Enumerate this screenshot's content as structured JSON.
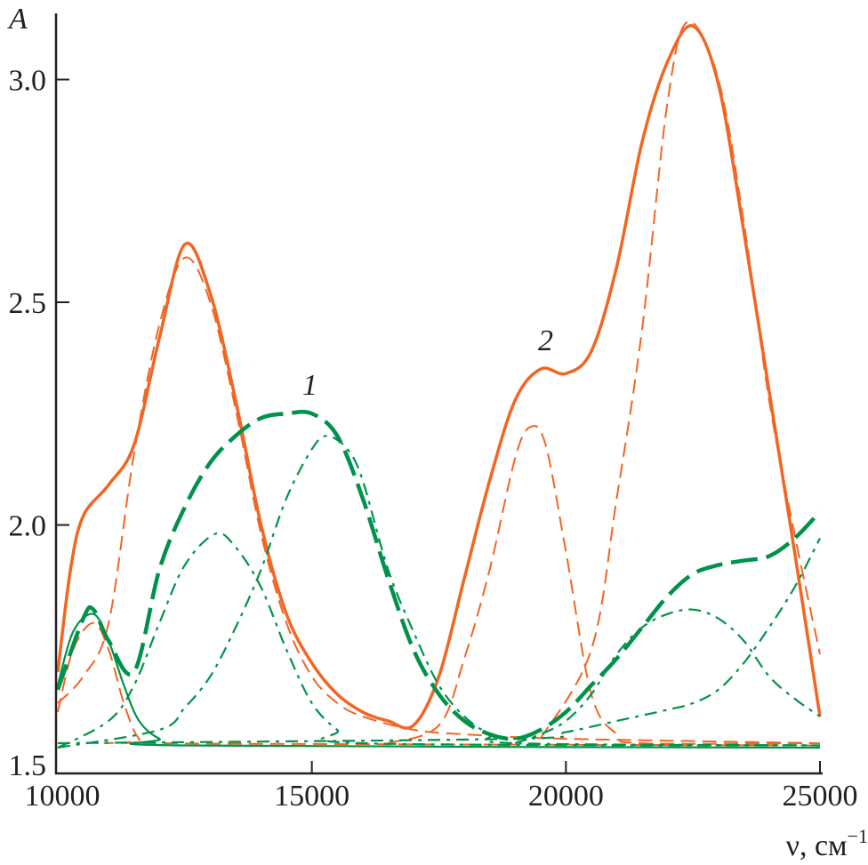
{
  "chart_data": {
    "type": "line",
    "ylabel": "A",
    "xlabel": "ν, см⁻¹",
    "xlim": [
      10000,
      25000
    ],
    "ylim": [
      1.44,
      3.15
    ],
    "x_ticks": [
      "10000",
      "15000",
      "20000",
      "25000"
    ],
    "y_ticks": [
      "1.5",
      "2.0",
      "2.5",
      "3.0"
    ],
    "grid": false,
    "annotations": [
      {
        "text": "1",
        "x": 14950,
        "y": 2.3
      },
      {
        "text": "2",
        "x": 19650,
        "y": 2.4
      }
    ],
    "colors": {
      "orange": "#F26522",
      "green": "#00924A",
      "axis": "#231f20"
    },
    "series": [
      {
        "color": "orange",
        "style": "solid-thick",
        "points": [
          [
            10000,
            1.67
          ],
          [
            10250,
            1.9
          ],
          [
            10500,
            2.02
          ],
          [
            11000,
            2.09
          ],
          [
            11500,
            2.18
          ],
          [
            12000,
            2.42
          ],
          [
            12500,
            2.63
          ],
          [
            13000,
            2.52
          ],
          [
            13500,
            2.28
          ],
          [
            14000,
            2.0
          ],
          [
            14500,
            1.8
          ],
          [
            15000,
            1.69
          ],
          [
            15500,
            1.62
          ],
          [
            16000,
            1.58
          ],
          [
            16500,
            1.56
          ],
          [
            17000,
            1.55
          ],
          [
            17500,
            1.66
          ],
          [
            18000,
            1.88
          ],
          [
            18500,
            2.1
          ],
          [
            19000,
            2.28
          ],
          [
            19500,
            2.35
          ],
          [
            20000,
            2.34
          ],
          [
            20500,
            2.39
          ],
          [
            21000,
            2.58
          ],
          [
            21500,
            2.86
          ],
          [
            22000,
            3.04
          ],
          [
            22500,
            3.12
          ],
          [
            23000,
            2.99
          ],
          [
            23500,
            2.66
          ],
          [
            24000,
            2.3
          ],
          [
            24500,
            1.94
          ],
          [
            25000,
            1.57
          ]
        ]
      },
      {
        "color": "orange",
        "style": "dashed",
        "points": [
          [
            10000,
            1.58
          ],
          [
            10300,
            1.72
          ],
          [
            10700,
            1.78
          ],
          [
            11000,
            1.72
          ],
          [
            11300,
            1.6
          ],
          [
            11600,
            1.52
          ],
          [
            12000,
            1.51
          ],
          [
            25000,
            1.505
          ]
        ]
      },
      {
        "color": "orange",
        "style": "dashed",
        "points": [
          [
            10000,
            1.6
          ],
          [
            10500,
            1.66
          ],
          [
            11000,
            1.78
          ],
          [
            11500,
            2.16
          ],
          [
            12000,
            2.45
          ],
          [
            12500,
            2.6
          ],
          [
            13000,
            2.5
          ],
          [
            13500,
            2.26
          ],
          [
            14000,
            1.98
          ],
          [
            14500,
            1.78
          ],
          [
            15000,
            1.66
          ],
          [
            15500,
            1.6
          ],
          [
            16000,
            1.57
          ],
          [
            17000,
            1.54
          ],
          [
            18000,
            1.53
          ],
          [
            20000,
            1.52
          ],
          [
            25000,
            1.51
          ]
        ]
      },
      {
        "color": "orange",
        "style": "dashed",
        "points": [
          [
            16500,
            1.51
          ],
          [
            17500,
            1.55
          ],
          [
            18000,
            1.7
          ],
          [
            18500,
            1.9
          ],
          [
            19000,
            2.15
          ],
          [
            19300,
            2.22
          ],
          [
            19600,
            2.18
          ],
          [
            20000,
            1.94
          ],
          [
            20500,
            1.62
          ],
          [
            21000,
            1.53
          ],
          [
            21500,
            1.51
          ],
          [
            25000,
            1.51
          ]
        ]
      },
      {
        "color": "orange",
        "style": "dashed",
        "points": [
          [
            19500,
            1.52
          ],
          [
            20500,
            1.72
          ],
          [
            21000,
            2.06
          ],
          [
            21500,
            2.44
          ],
          [
            22000,
            2.95
          ],
          [
            22400,
            3.13
          ],
          [
            23000,
            3.0
          ],
          [
            23500,
            2.68
          ],
          [
            24000,
            2.28
          ],
          [
            24500,
            1.98
          ],
          [
            25000,
            1.71
          ]
        ]
      },
      {
        "color": "green",
        "style": "long-dashed-thick",
        "points": [
          [
            10000,
            1.63
          ],
          [
            10500,
            1.79
          ],
          [
            10700,
            1.81
          ],
          [
            11000,
            1.74
          ],
          [
            11500,
            1.67
          ],
          [
            12000,
            1.9
          ],
          [
            12500,
            2.04
          ],
          [
            13000,
            2.14
          ],
          [
            13500,
            2.2
          ],
          [
            14000,
            2.24
          ],
          [
            14500,
            2.25
          ],
          [
            15000,
            2.25
          ],
          [
            15500,
            2.2
          ],
          [
            16000,
            2.06
          ],
          [
            16500,
            1.88
          ],
          [
            17000,
            1.72
          ],
          [
            17500,
            1.62
          ],
          [
            18000,
            1.56
          ],
          [
            18500,
            1.53
          ],
          [
            19000,
            1.52
          ],
          [
            19500,
            1.54
          ],
          [
            20000,
            1.58
          ],
          [
            20500,
            1.64
          ],
          [
            21000,
            1.7
          ],
          [
            21500,
            1.77
          ],
          [
            22000,
            1.84
          ],
          [
            22500,
            1.89
          ],
          [
            23000,
            1.91
          ],
          [
            23500,
            1.92
          ],
          [
            24000,
            1.93
          ],
          [
            24500,
            1.97
          ],
          [
            25000,
            2.03
          ]
        ]
      },
      {
        "color": "green",
        "style": "solid-thin",
        "points": [
          [
            10000,
            1.64
          ],
          [
            10300,
            1.76
          ],
          [
            10700,
            1.8
          ],
          [
            11000,
            1.74
          ],
          [
            11300,
            1.64
          ],
          [
            11600,
            1.56
          ],
          [
            12000,
            1.52
          ],
          [
            12500,
            1.505
          ],
          [
            25000,
            1.5
          ]
        ]
      },
      {
        "color": "green",
        "style": "dash-dot",
        "points": [
          [
            10000,
            1.5
          ],
          [
            11000,
            1.56
          ],
          [
            11500,
            1.64
          ],
          [
            12000,
            1.78
          ],
          [
            12500,
            1.91
          ],
          [
            13100,
            1.98
          ],
          [
            13500,
            1.95
          ],
          [
            14000,
            1.86
          ],
          [
            14500,
            1.72
          ],
          [
            15000,
            1.6
          ],
          [
            15500,
            1.54
          ],
          [
            16000,
            1.51
          ],
          [
            25000,
            1.505
          ]
        ]
      },
      {
        "color": "green",
        "style": "dash-dot",
        "points": [
          [
            10000,
            1.5
          ],
          [
            12000,
            1.54
          ],
          [
            12500,
            1.59
          ],
          [
            13000,
            1.66
          ],
          [
            13500,
            1.77
          ],
          [
            14000,
            1.9
          ],
          [
            14500,
            2.06
          ],
          [
            15000,
            2.17
          ],
          [
            15300,
            2.2
          ],
          [
            15700,
            2.17
          ],
          [
            16000,
            2.1
          ],
          [
            16500,
            1.9
          ],
          [
            17000,
            1.76
          ],
          [
            17500,
            1.64
          ],
          [
            18000,
            1.57
          ],
          [
            18500,
            1.53
          ],
          [
            19000,
            1.51
          ],
          [
            25000,
            1.505
          ]
        ]
      },
      {
        "color": "green",
        "style": "dash-dot",
        "points": [
          [
            19000,
            1.51
          ],
          [
            19500,
            1.53
          ],
          [
            20000,
            1.56
          ],
          [
            20500,
            1.62
          ],
          [
            21000,
            1.71
          ],
          [
            21500,
            1.77
          ],
          [
            22000,
            1.8
          ],
          [
            22500,
            1.81
          ],
          [
            23000,
            1.79
          ],
          [
            23500,
            1.74
          ],
          [
            24000,
            1.66
          ],
          [
            24500,
            1.61
          ],
          [
            25000,
            1.57
          ]
        ]
      },
      {
        "color": "green",
        "style": "dash-dot",
        "points": [
          [
            10000,
            1.51
          ],
          [
            19000,
            1.52
          ],
          [
            20000,
            1.535
          ],
          [
            21000,
            1.56
          ],
          [
            22000,
            1.585
          ],
          [
            22500,
            1.6
          ],
          [
            23000,
            1.63
          ],
          [
            23500,
            1.69
          ],
          [
            24000,
            1.77
          ],
          [
            24500,
            1.86
          ],
          [
            25000,
            1.97
          ]
        ]
      }
    ]
  }
}
